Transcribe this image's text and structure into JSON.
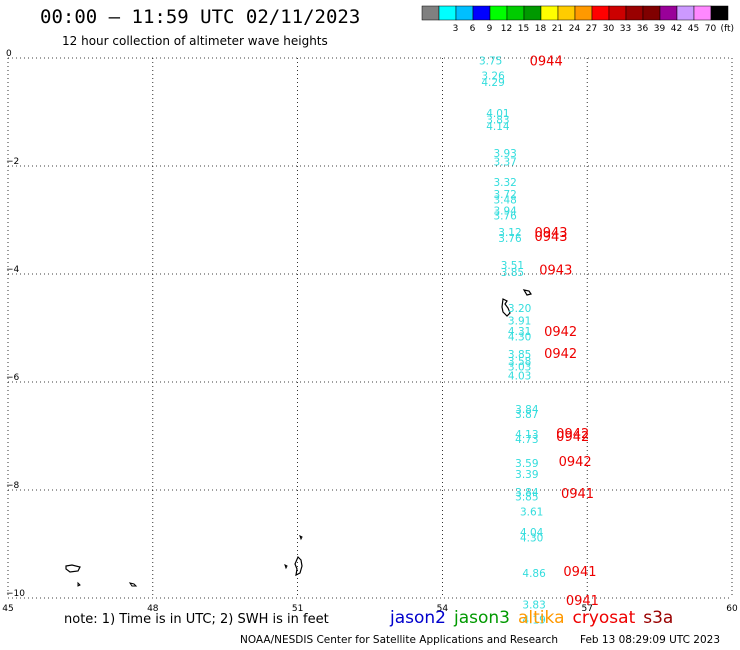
{
  "header": {
    "title": "00:00 – 11:59 UTC 02/11/2023",
    "subtitle": "12 hour collection of altimeter wave heights"
  },
  "legend": {
    "unit": "(ft)",
    "bins": [
      {
        "label": "",
        "color": "#808080"
      },
      {
        "label": "3",
        "color": "#00ffff"
      },
      {
        "label": "6",
        "color": "#00bfff"
      },
      {
        "label": "9",
        "color": "#0000ff"
      },
      {
        "label": "12",
        "color": "#00ff00"
      },
      {
        "label": "15",
        "color": "#00cc00"
      },
      {
        "label": "18",
        "color": "#009900"
      },
      {
        "label": "21",
        "color": "#ffff00"
      },
      {
        "label": "24",
        "color": "#ffcc00"
      },
      {
        "label": "27",
        "color": "#ff9900"
      },
      {
        "label": "30",
        "color": "#ff0000"
      },
      {
        "label": "33",
        "color": "#cc0000"
      },
      {
        "label": "36",
        "color": "#990000"
      },
      {
        "label": "39",
        "color": "#800000"
      },
      {
        "label": "42",
        "color": "#990099"
      },
      {
        "label": "45",
        "color": "#cc99ff"
      },
      {
        "label": "70",
        "color": "#ff88ff"
      },
      {
        "label": "",
        "color": "#000000"
      }
    ]
  },
  "chart_data": {
    "type": "scatter",
    "xlim": [
      45,
      60
    ],
    "ylim": [
      -10,
      0
    ],
    "xticks": [
      45,
      48,
      51,
      54,
      57,
      60
    ],
    "yticks": [
      0,
      -2,
      -4,
      -6,
      -8,
      -10
    ],
    "x_tick_labels": [
      "45",
      "48",
      "51",
      "54",
      "57",
      "60"
    ],
    "y_tick_labels": [
      "0",
      "−2",
      "−4",
      "−6",
      "−8",
      "−10"
    ],
    "grid": true,
    "wave_color": "#33dddd",
    "time_color": "#ee0000",
    "wave_heights": [
      {
        "lon": 55.0,
        "lat": -0.05,
        "label": "3.75"
      },
      {
        "lon": 55.05,
        "lat": -0.32,
        "label": "3.26"
      },
      {
        "lon": 55.05,
        "lat": -0.44,
        "label": "4.29"
      },
      {
        "lon": 55.15,
        "lat": -1.02,
        "label": "4.01"
      },
      {
        "lon": 55.15,
        "lat": -1.14,
        "label": "3.83"
      },
      {
        "lon": 55.15,
        "lat": -1.26,
        "label": "4.14"
      },
      {
        "lon": 55.3,
        "lat": -1.76,
        "label": "3.93"
      },
      {
        "lon": 55.3,
        "lat": -1.92,
        "label": "3.37"
      },
      {
        "lon": 55.3,
        "lat": -2.3,
        "label": "3.32"
      },
      {
        "lon": 55.3,
        "lat": -2.52,
        "label": "3.72"
      },
      {
        "lon": 55.3,
        "lat": -2.62,
        "label": "3.48"
      },
      {
        "lon": 55.3,
        "lat": -2.82,
        "label": "3.94"
      },
      {
        "lon": 55.3,
        "lat": -2.92,
        "label": "3.76"
      },
      {
        "lon": 55.4,
        "lat": -3.22,
        "label": "3.12"
      },
      {
        "lon": 55.4,
        "lat": -3.33,
        "label": "3.76"
      },
      {
        "lon": 55.45,
        "lat": -3.83,
        "label": "3.51"
      },
      {
        "lon": 55.45,
        "lat": -3.96,
        "label": "3.85"
      },
      {
        "lon": 55.6,
        "lat": -4.63,
        "label": "3.20"
      },
      {
        "lon": 55.6,
        "lat": -4.86,
        "label": "3.91"
      },
      {
        "lon": 55.6,
        "lat": -5.06,
        "label": "4.31"
      },
      {
        "lon": 55.6,
        "lat": -5.16,
        "label": "4.30"
      },
      {
        "lon": 55.6,
        "lat": -5.48,
        "label": "3.85"
      },
      {
        "lon": 55.6,
        "lat": -5.61,
        "label": "3.58"
      },
      {
        "lon": 55.6,
        "lat": -5.71,
        "label": "3.03"
      },
      {
        "lon": 55.6,
        "lat": -5.88,
        "label": "4.03"
      },
      {
        "lon": 55.75,
        "lat": -6.5,
        "label": "3.84"
      },
      {
        "lon": 55.75,
        "lat": -6.59,
        "label": "3.87"
      },
      {
        "lon": 55.75,
        "lat": -6.96,
        "label": "4.13"
      },
      {
        "lon": 55.75,
        "lat": -7.06,
        "label": "4.73"
      },
      {
        "lon": 55.75,
        "lat": -7.5,
        "label": "3.59"
      },
      {
        "lon": 55.75,
        "lat": -7.7,
        "label": "3.39"
      },
      {
        "lon": 55.75,
        "lat": -8.04,
        "label": "3.84"
      },
      {
        "lon": 55.75,
        "lat": -8.12,
        "label": "3.85"
      },
      {
        "lon": 55.85,
        "lat": -8.4,
        "label": "3.61"
      },
      {
        "lon": 55.85,
        "lat": -8.78,
        "label": "4.04"
      },
      {
        "lon": 55.85,
        "lat": -8.88,
        "label": "4.30"
      },
      {
        "lon": 55.9,
        "lat": -9.54,
        "label": "4.86"
      },
      {
        "lon": 55.9,
        "lat": -10.12,
        "label": "3.83"
      },
      {
        "lon": 55.9,
        "lat": -10.4,
        "label": "4.19"
      }
    ],
    "pass_times": [
      {
        "lon": 56.15,
        "lat": -0.05,
        "label": "0944"
      },
      {
        "lon": 56.25,
        "lat": -3.22,
        "label": "0943"
      },
      {
        "lon": 56.25,
        "lat": -3.3,
        "label": "0943"
      },
      {
        "lon": 56.35,
        "lat": -3.92,
        "label": "0943"
      },
      {
        "lon": 56.45,
        "lat": -5.06,
        "label": "0942"
      },
      {
        "lon": 56.45,
        "lat": -5.46,
        "label": "0942"
      },
      {
        "lon": 56.7,
        "lat": -6.94,
        "label": "0942"
      },
      {
        "lon": 56.7,
        "lat": -7.0,
        "label": "0942"
      },
      {
        "lon": 56.75,
        "lat": -7.46,
        "label": "0942"
      },
      {
        "lon": 56.8,
        "lat": -8.06,
        "label": "0941"
      },
      {
        "lon": 56.85,
        "lat": -9.5,
        "label": "0941"
      },
      {
        "lon": 56.9,
        "lat": -10.04,
        "label": "0941"
      }
    ]
  },
  "note": "note: 1) Time is in UTC; 2) SWH is in feet",
  "missions": [
    {
      "label": "jason2",
      "color": "#0000cc"
    },
    {
      "label": "jason3",
      "color": "#009900"
    },
    {
      "label": "altika",
      "color": "#ff9900"
    },
    {
      "label": "cryosat",
      "color": "#ee0000"
    },
    {
      "label": "s3a",
      "color": "#990000"
    }
  ],
  "footer": {
    "credit": "NOAA/NESDIS Center for Satellite Applications and Research",
    "timestamp": "Feb 13 08:29:09 UTC 2023"
  }
}
